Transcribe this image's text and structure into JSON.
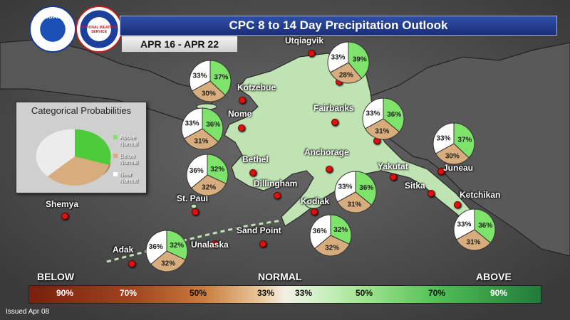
{
  "title": "CPC 8 to 14 Day Precipitation Outlook",
  "date_range": "APR 16 - APR 22",
  "issued": "Issued Apr 08",
  "logos": {
    "noaa_text": "NOAA",
    "nws_text": "NATIONAL WEATHER SERVICE"
  },
  "legend": {
    "title": "Categorical Probabilities",
    "items": [
      {
        "name": "above",
        "label1": "Above",
        "label2": "Normal",
        "color": "#7ee36a"
      },
      {
        "name": "below",
        "label1": "Below",
        "label2": "Normal",
        "color": "#d8ad7d"
      },
      {
        "name": "near",
        "label1": "Near",
        "label2": "Normal",
        "color": "#ffffff"
      }
    ]
  },
  "colors": {
    "above": "#7ee36a",
    "below": "#d8ad7d",
    "near": "#ffffff"
  },
  "scale": {
    "below_label": "BELOW",
    "normal_label": "NORMAL",
    "above_label": "ABOVE",
    "ticks": [
      "90%",
      "70%",
      "50%",
      "33%",
      "33%",
      "50%",
      "70%",
      "90%"
    ]
  },
  "cities": [
    "Utqiagvik",
    "Kotzebue",
    "Nome",
    "Fairbanks",
    "Anchorage",
    "Bethel",
    "Dillingham",
    "Yakutat",
    "Juneau",
    "Sitka",
    "Ketchikan",
    "Kodiak",
    "St. Paul",
    "Shemya",
    "Adak",
    "Unalaska",
    "Sand Point"
  ],
  "pies": [
    {
      "name": "arctic",
      "below": 28,
      "near": 33,
      "above": 39
    },
    {
      "name": "kotzebue",
      "below": 30,
      "near": 33,
      "above": 37
    },
    {
      "name": "nome",
      "below": 31,
      "near": 33,
      "above": 36
    },
    {
      "name": "northeast",
      "below": 31,
      "near": 33,
      "above": 36
    },
    {
      "name": "southeast-north",
      "below": 30,
      "near": 33,
      "above": 37
    },
    {
      "name": "bethel",
      "below": 32,
      "near": 36,
      "above": 32
    },
    {
      "name": "anchorage",
      "below": 31,
      "near": 33,
      "above": 36
    },
    {
      "name": "kodiak",
      "below": 32,
      "near": 36,
      "above": 32
    },
    {
      "name": "ketchikan",
      "below": 31,
      "near": 33,
      "above": 36
    },
    {
      "name": "aleutians",
      "below": 32,
      "near": 36,
      "above": 32
    }
  ]
}
